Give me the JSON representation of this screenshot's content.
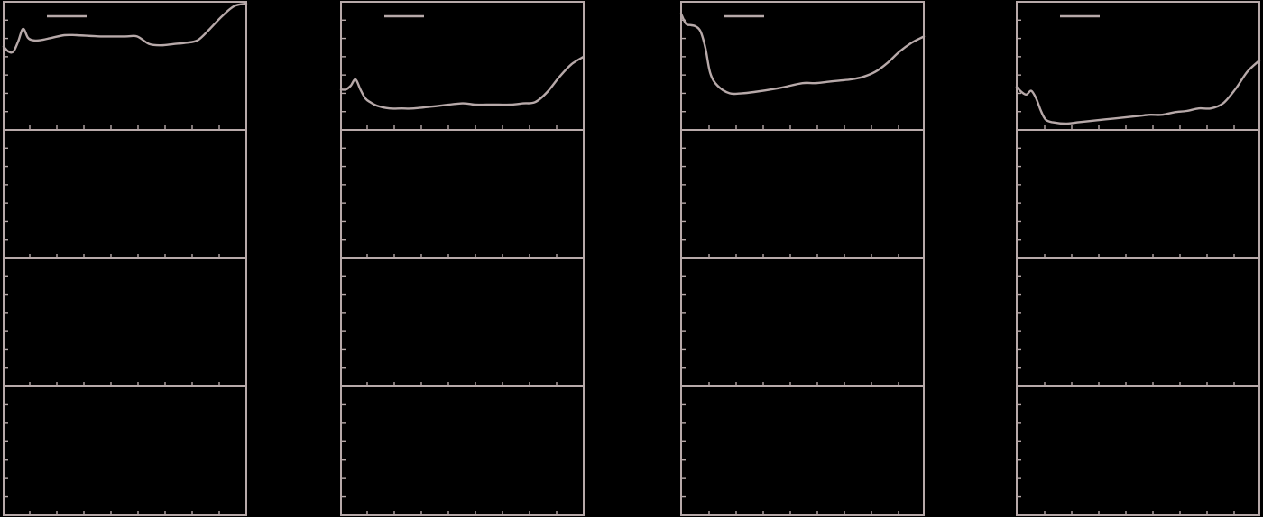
{
  "figure": {
    "background": "#000000",
    "axis_color": "#b7a9a9",
    "line_color": "#b7a9a9"
  },
  "chart_data": [
    {
      "type": "line",
      "title": "",
      "xlabel": "",
      "ylabel": "",
      "xlim": [
        0,
        100
      ],
      "ylim": [
        0,
        100
      ],
      "grid": false,
      "legend": "top-left",
      "subplots": 4,
      "series": [
        {
          "x": [
            0,
            2,
            4,
            6,
            8,
            10,
            12,
            15,
            20,
            25,
            30,
            40,
            50,
            55,
            60,
            65,
            70,
            75,
            80,
            85,
            90,
            95,
            100
          ],
          "y": [
            66,
            62,
            62,
            70,
            80,
            73,
            71,
            71,
            73,
            75,
            75,
            74,
            74,
            74,
            68,
            67,
            68,
            69,
            71,
            80,
            90,
            98,
            100
          ]
        }
      ]
    },
    {
      "type": "line",
      "title": "",
      "xlabel": "",
      "ylabel": "",
      "xlim": [
        0,
        100
      ],
      "ylim": [
        0,
        100
      ],
      "grid": false,
      "legend": "top-left",
      "subplots": 4,
      "series": [
        {
          "x": [
            0,
            2,
            4,
            6,
            8,
            10,
            12,
            15,
            20,
            25,
            30,
            40,
            50,
            55,
            60,
            65,
            70,
            75,
            80,
            85,
            90,
            95,
            100
          ],
          "y": [
            32,
            32,
            35,
            40,
            32,
            25,
            22,
            19,
            17,
            17,
            17,
            19,
            21,
            20,
            20,
            20,
            20,
            21,
            22,
            30,
            42,
            52,
            58
          ]
        }
      ]
    },
    {
      "type": "line",
      "title": "",
      "xlabel": "",
      "ylabel": "",
      "xlim": [
        0,
        100
      ],
      "ylim": [
        0,
        100
      ],
      "grid": false,
      "legend": "top-left",
      "subplots": 4,
      "series": [
        {
          "x": [
            0,
            2,
            4,
            6,
            8,
            10,
            12,
            15,
            20,
            25,
            30,
            40,
            50,
            55,
            60,
            65,
            70,
            75,
            80,
            85,
            90,
            95,
            100
          ],
          "y": [
            92,
            84,
            83,
            82,
            78,
            65,
            45,
            35,
            29,
            29,
            30,
            33,
            37,
            37,
            38,
            39,
            40,
            42,
            46,
            53,
            62,
            69,
            74
          ]
        }
      ]
    },
    {
      "type": "line",
      "title": "",
      "xlabel": "",
      "ylabel": "",
      "xlim": [
        0,
        100
      ],
      "ylim": [
        0,
        100
      ],
      "grid": false,
      "legend": "top-left",
      "subplots": 4,
      "series": [
        {
          "x": [
            0,
            2,
            4,
            6,
            8,
            10,
            12,
            15,
            20,
            25,
            30,
            40,
            50,
            55,
            60,
            65,
            70,
            75,
            80,
            85,
            90,
            95,
            100
          ],
          "y": [
            34,
            30,
            28,
            31,
            25,
            15,
            8,
            6,
            5,
            6,
            7,
            9,
            11,
            12,
            12,
            14,
            15,
            17,
            17,
            21,
            32,
            46,
            55
          ]
        }
      ]
    }
  ]
}
